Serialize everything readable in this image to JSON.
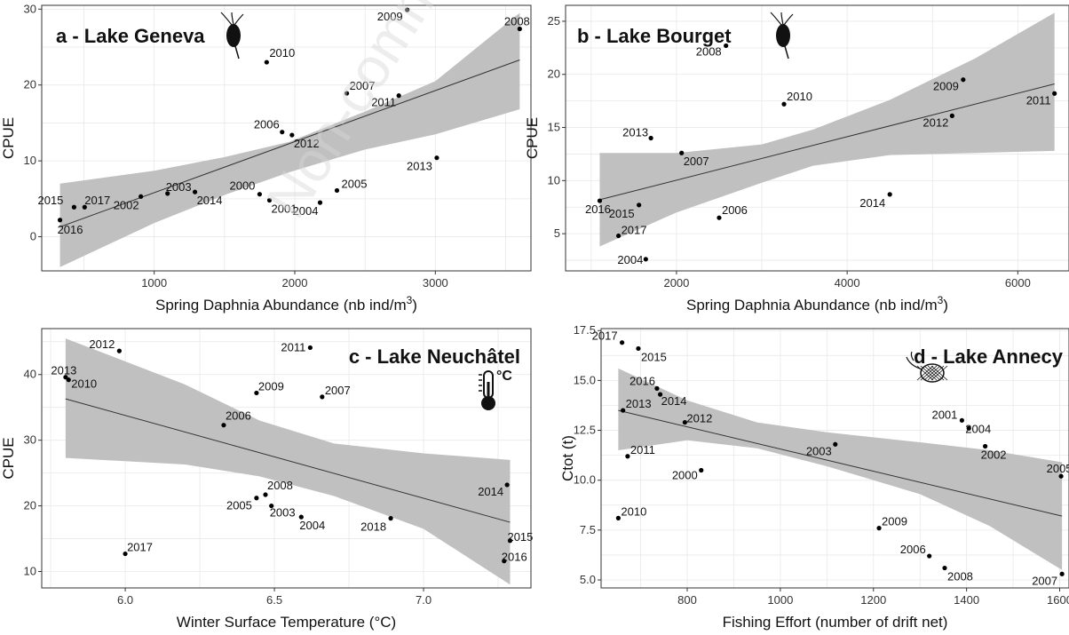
{
  "watermark": "Non-commercial",
  "chart_data": [
    {
      "type": "scatter",
      "title": "a - Lake Geneva",
      "icon": "daphnia-icon",
      "xlabel": "Spring Daphnia Abundance (nb ind/m",
      "xlabel_sup": "3",
      "xlabel_end": ")",
      "ylabel": "CPUE",
      "xlim": [
        200,
        3680
      ],
      "ylim": [
        -4.5,
        30.5
      ],
      "xticks": [
        1000,
        2000,
        3000
      ],
      "yticks": [
        0,
        10,
        20,
        30
      ],
      "grid": true,
      "legend": "none",
      "points": [
        {
          "label": "2016",
          "x": 330,
          "y": 2.2
        },
        {
          "label": "2015",
          "x": 430,
          "y": 3.9
        },
        {
          "label": "2017",
          "x": 505,
          "y": 3.9
        },
        {
          "label": "2002",
          "x": 905,
          "y": 5.3
        },
        {
          "label": "2003",
          "x": 1095,
          "y": 5.7
        },
        {
          "label": "2014",
          "x": 1290,
          "y": 5.9
        },
        {
          "label": "2000",
          "x": 1750,
          "y": 5.6
        },
        {
          "label": "2001",
          "x": 1820,
          "y": 4.8
        },
        {
          "label": "2004",
          "x": 2180,
          "y": 4.5
        },
        {
          "label": "2005",
          "x": 2300,
          "y": 6.1
        },
        {
          "label": "2006",
          "x": 1910,
          "y": 13.8
        },
        {
          "label": "2012",
          "x": 1980,
          "y": 13.4
        },
        {
          "label": "2007",
          "x": 2370,
          "y": 18.9
        },
        {
          "label": "2011",
          "x": 2740,
          "y": 18.6
        },
        {
          "label": "2010",
          "x": 1800,
          "y": 23.0
        },
        {
          "label": "2009",
          "x": 2800,
          "y": 29.9
        },
        {
          "label": "2008",
          "x": 3600,
          "y": 27.4
        },
        {
          "label": "2013",
          "x": 3010,
          "y": 10.4
        }
      ],
      "trend": {
        "x": [
          330,
          3600
        ],
        "y": [
          1.3,
          23.3
        ]
      },
      "band": {
        "x": [
          330,
          1000,
          1500,
          1960,
          2500,
          3000,
          3600
        ],
        "lower": [
          -4.0,
          1.8,
          5.5,
          8.5,
          11.5,
          13.5,
          16.8
        ],
        "upper": [
          7.0,
          8.7,
          10.5,
          12.5,
          16.5,
          20.5,
          29.5
        ]
      }
    },
    {
      "type": "scatter",
      "title": "b - Lake Bourget",
      "icon": "daphnia-icon",
      "xlabel": "Spring Daphnia Abundance (nb ind/m",
      "xlabel_sup": "3",
      "xlabel_end": ")",
      "ylabel": "CPUE",
      "xlim": [
        700,
        6600
      ],
      "ylim": [
        1.5,
        26.5
      ],
      "xticks": [
        2000,
        4000,
        6000
      ],
      "yticks": [
        5,
        10,
        15,
        20,
        25
      ],
      "grid": true,
      "legend": "none",
      "points": [
        {
          "label": "2016",
          "x": 1100,
          "y": 8.1
        },
        {
          "label": "2017",
          "x": 1320,
          "y": 4.8
        },
        {
          "label": "2015",
          "x": 1560,
          "y": 7.7
        },
        {
          "label": "2004",
          "x": 1640,
          "y": 2.6
        },
        {
          "label": "2013",
          "x": 1700,
          "y": 14.0
        },
        {
          "label": "2007",
          "x": 2060,
          "y": 12.6
        },
        {
          "label": "2006",
          "x": 2500,
          "y": 6.5
        },
        {
          "label": "2008",
          "x": 2580,
          "y": 22.7
        },
        {
          "label": "2010",
          "x": 3260,
          "y": 17.2
        },
        {
          "label": "2014",
          "x": 4500,
          "y": 8.7
        },
        {
          "label": "2012",
          "x": 5230,
          "y": 16.1
        },
        {
          "label": "2009",
          "x": 5360,
          "y": 19.5
        },
        {
          "label": "2011",
          "x": 6430,
          "y": 18.2
        }
      ],
      "trend": {
        "x": [
          1100,
          6430
        ],
        "y": [
          8.2,
          19.1
        ]
      },
      "band": {
        "x": [
          1100,
          2000,
          3000,
          3600,
          4500,
          5500,
          6430
        ],
        "lower": [
          3.8,
          7.0,
          9.8,
          11.4,
          12.4,
          12.6,
          12.8
        ],
        "upper": [
          12.6,
          12.6,
          13.4,
          14.8,
          17.6,
          21.5,
          25.8
        ]
      }
    },
    {
      "type": "scatter",
      "title": "c - Lake Neuchâtel",
      "icon": "thermometer-icon",
      "icon_text": "°C",
      "xlabel": "Winter Surface Temperature (°C)",
      "ylabel": "CPUE",
      "xlim": [
        5.72,
        7.36
      ],
      "ylim": [
        7.5,
        47
      ],
      "xticks": [
        6.0,
        6.5,
        7.0
      ],
      "xtick_labels": [
        "6.0",
        "6.5",
        "7.0"
      ],
      "yticks": [
        10,
        20,
        30,
        40
      ],
      "grid": true,
      "legend": "none",
      "points": [
        {
          "label": "2013",
          "x": 5.8,
          "y": 39.6
        },
        {
          "label": "2010",
          "x": 5.81,
          "y": 39.2
        },
        {
          "label": "2012",
          "x": 5.98,
          "y": 43.6
        },
        {
          "label": "2017",
          "x": 6.0,
          "y": 12.7
        },
        {
          "label": "2006",
          "x": 6.33,
          "y": 32.3
        },
        {
          "label": "2009",
          "x": 6.44,
          "y": 37.2
        },
        {
          "label": "2005",
          "x": 6.44,
          "y": 21.2
        },
        {
          "label": "2008",
          "x": 6.47,
          "y": 21.7
        },
        {
          "label": "2003",
          "x": 6.49,
          "y": 20.0
        },
        {
          "label": "2004",
          "x": 6.59,
          "y": 18.3
        },
        {
          "label": "2011",
          "x": 6.62,
          "y": 44.1
        },
        {
          "label": "2007",
          "x": 6.66,
          "y": 36.6
        },
        {
          "label": "2018",
          "x": 6.89,
          "y": 18.1
        },
        {
          "label": "2014",
          "x": 7.28,
          "y": 23.2
        },
        {
          "label": "2015",
          "x": 7.29,
          "y": 14.7
        },
        {
          "label": "2016",
          "x": 7.27,
          "y": 11.6
        }
      ],
      "trend": {
        "x": [
          5.8,
          7.29
        ],
        "y": [
          36.3,
          17.5
        ]
      },
      "band": {
        "x": [
          5.8,
          6.2,
          6.45,
          6.7,
          7.0,
          7.29
        ],
        "lower": [
          27.3,
          26.3,
          24.5,
          21.5,
          16.5,
          8.0
        ],
        "upper": [
          45.5,
          38.5,
          33.0,
          29.5,
          28.0,
          27.0
        ]
      }
    },
    {
      "type": "scatter",
      "title": "d - Lake Annecy",
      "icon": "fishing-net-icon",
      "xlabel": "Fishing Effort (number of drift net)",
      "ylabel": "Ctot (t)",
      "xlim": [
        615,
        1620
      ],
      "ylim": [
        4.6,
        17.6
      ],
      "xticks": [
        800,
        1000,
        1200,
        1400,
        1600
      ],
      "yticks": [
        5.0,
        7.5,
        10.0,
        12.5,
        15.0,
        17.5
      ],
      "ytick_labels": [
        "5.0",
        "7.5",
        "10.0",
        "12.5",
        "15.0",
        "17.5"
      ],
      "grid": true,
      "legend": "none",
      "points": [
        {
          "label": "2017",
          "x": 660,
          "y": 16.9
        },
        {
          "label": "2015",
          "x": 695,
          "y": 16.6
        },
        {
          "label": "2016",
          "x": 735,
          "y": 14.6
        },
        {
          "label": "2014",
          "x": 742,
          "y": 14.3
        },
        {
          "label": "2013",
          "x": 662,
          "y": 13.5
        },
        {
          "label": "2012",
          "x": 795,
          "y": 12.9
        },
        {
          "label": "2011",
          "x": 672,
          "y": 11.2
        },
        {
          "label": "2000",
          "x": 830,
          "y": 10.5
        },
        {
          "label": "2010",
          "x": 652,
          "y": 8.1
        },
        {
          "label": "2003",
          "x": 1118,
          "y": 11.8
        },
        {
          "label": "2009",
          "x": 1212,
          "y": 7.6
        },
        {
          "label": "2006",
          "x": 1320,
          "y": 6.2
        },
        {
          "label": "2008",
          "x": 1353,
          "y": 5.6
        },
        {
          "label": "2001",
          "x": 1390,
          "y": 13.0
        },
        {
          "label": "2004",
          "x": 1405,
          "y": 12.6
        },
        {
          "label": "2002",
          "x": 1440,
          "y": 11.7
        },
        {
          "label": "2005",
          "x": 1603,
          "y": 10.2
        },
        {
          "label": "2007",
          "x": 1605,
          "y": 5.3
        }
      ],
      "trend": {
        "x": [
          652,
          1605
        ],
        "y": [
          13.5,
          8.2
        ]
      },
      "band": {
        "x": [
          652,
          800,
          950,
          1100,
          1300,
          1450,
          1605
        ],
        "lower": [
          11.5,
          12.0,
          11.6,
          10.7,
          9.3,
          7.7,
          5.5
        ],
        "upper": [
          15.6,
          14.0,
          12.9,
          12.4,
          11.9,
          11.5,
          10.9
        ]
      }
    }
  ]
}
